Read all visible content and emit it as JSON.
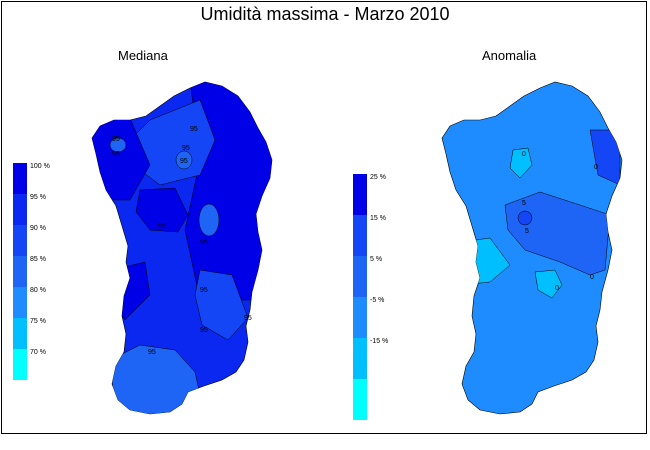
{
  "title": "Umidità massima - Marzo 2010",
  "panels": [
    {
      "label": "Mediana"
    },
    {
      "label": "Anomalia"
    }
  ],
  "legend_median": {
    "colors": [
      "#0000e6",
      "#0a28f0",
      "#1446f5",
      "#1e64f5",
      "#1e8cff",
      "#00bfff",
      "#00ffff"
    ],
    "ticks": [
      "100 %",
      "95 %",
      "90 %",
      "85 %",
      "80 %",
      "75 %",
      "70 %"
    ]
  },
  "legend_anomaly": {
    "colors": [
      "#0000e6",
      "#1446f5",
      "#1e64f5",
      "#1e8cff",
      "#00bfff",
      "#00ffff"
    ],
    "ticks": [
      "25 %",
      "15 %",
      "5 %",
      "-5 %",
      "-15 %"
    ]
  },
  "contour_labels_left": [
    "95",
    "95",
    "95",
    "95",
    "95",
    "95",
    "95",
    "95",
    "95",
    "95",
    "95"
  ],
  "contour_labels_right": [
    "0",
    "5",
    "5",
    "0",
    "0",
    "0"
  ]
}
